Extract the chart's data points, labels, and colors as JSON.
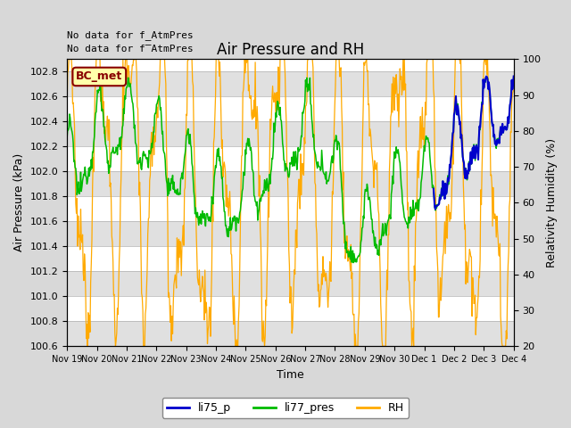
{
  "title": "Air Pressure and RH",
  "xlabel": "Time",
  "ylabel_left": "Air Pressure (kPa)",
  "ylabel_right": "Relativity Humidity (%)",
  "ylim_left": [
    100.6,
    102.9
  ],
  "ylim_right": [
    20,
    100
  ],
  "yticks_left": [
    100.6,
    100.8,
    101.0,
    101.2,
    101.4,
    101.6,
    101.8,
    102.0,
    102.2,
    102.4,
    102.6,
    102.8
  ],
  "yticks_right": [
    20,
    30,
    40,
    50,
    60,
    70,
    80,
    90,
    100
  ],
  "annotation1": "No data for f_AtmPres",
  "annotation2": "No data for f̅AtmPres",
  "annotation_box_label": "BC_met",
  "annotation_box_facecolor": "#ffffaa",
  "annotation_box_edgecolor": "#880000",
  "legend_labels": [
    "li75_p",
    "li77_pres",
    "RH"
  ],
  "li75_color": "#0000cc",
  "li77_color": "#00bb00",
  "rh_color": "#ffaa00",
  "fig_facecolor": "#d8d8d8",
  "plot_facecolor": "#ffffff",
  "band_color": "#e0e0e0",
  "xtick_labels": [
    "Nov 19",
    "Nov 20",
    "Nov 21",
    "Nov 22",
    "Nov 23",
    "Nov 24",
    "Nov 25",
    "Nov 26",
    "Nov 27",
    "Nov 28",
    "Nov 29",
    "Nov 30",
    "Dec 1",
    "Dec 2",
    "Dec 3",
    "Dec 4"
  ],
  "title_fontsize": 12,
  "label_fontsize": 9,
  "tick_fontsize": 8,
  "legend_fontsize": 9
}
